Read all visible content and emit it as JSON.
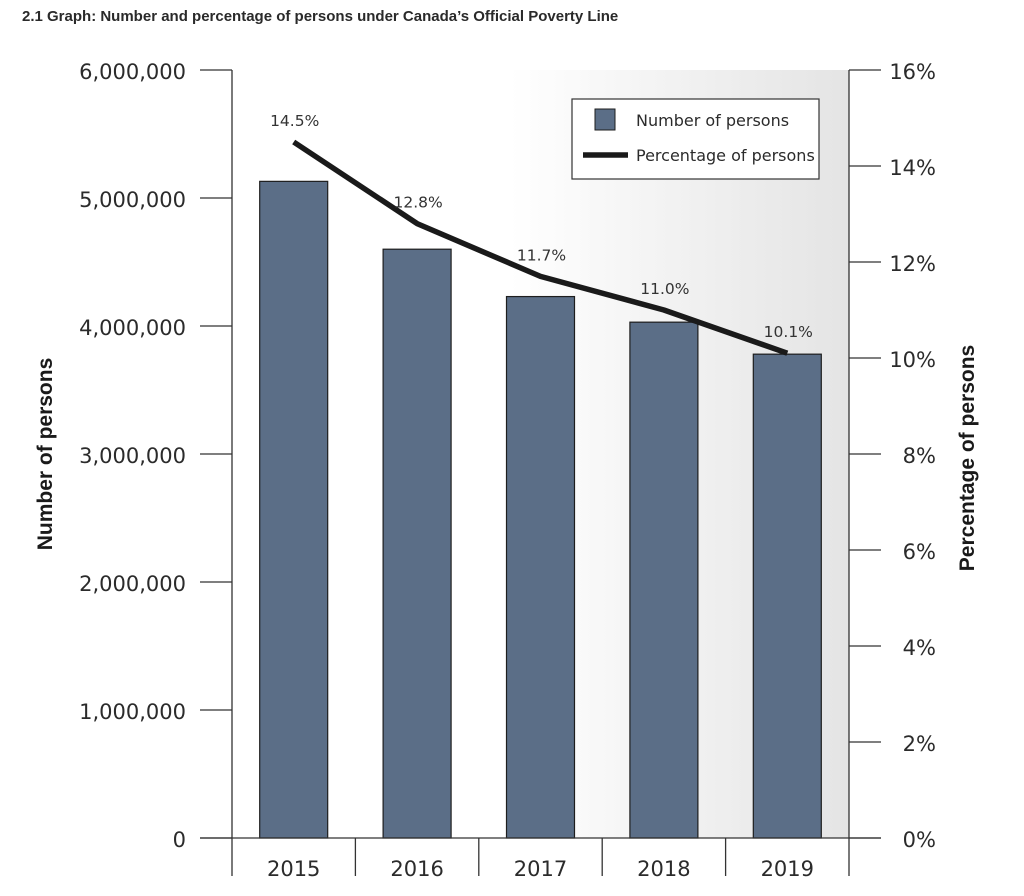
{
  "page": {
    "title": "2.1 Graph: Number and percentage of persons under Canada’s Official Poverty Line"
  },
  "chart_data": {
    "type": "bar",
    "title": "2.1 Graph: Number and percentage of persons under Canada’s Official Poverty Line",
    "categories": [
      "2015",
      "2016",
      "2017",
      "2018",
      "2019"
    ],
    "series": [
      {
        "name": "Number of persons",
        "type": "bar",
        "axis": "left",
        "values": [
          5130000,
          4600000,
          4230000,
          4030000,
          3780000
        ],
        "color": "#5b6e87"
      },
      {
        "name": "Percentage of persons",
        "type": "line",
        "axis": "right",
        "values": [
          14.5,
          12.8,
          11.7,
          11.0,
          10.1
        ],
        "value_labels": [
          "14.5%",
          "12.8%",
          "11.7%",
          "11.0%",
          "10.1%"
        ],
        "color": "#1a1a1a"
      }
    ],
    "ylabel": "Number of persons",
    "ylabel_right": "Percentage of persons",
    "ylim": [
      0,
      6000000
    ],
    "ylim_right": [
      0,
      16
    ],
    "yticks": [
      {
        "value": 0,
        "label": "0"
      },
      {
        "value": 1000000,
        "label": "1,000,000"
      },
      {
        "value": 2000000,
        "label": "2,000,000"
      },
      {
        "value": 3000000,
        "label": "3,000,000"
      },
      {
        "value": 4000000,
        "label": "4,000,000"
      },
      {
        "value": 5000000,
        "label": "5,000,000"
      },
      {
        "value": 6000000,
        "label": "6,000,000"
      }
    ],
    "yticks_right": [
      {
        "value": 0,
        "label": "0%"
      },
      {
        "value": 2,
        "label": "2%"
      },
      {
        "value": 4,
        "label": "4%"
      },
      {
        "value": 6,
        "label": "6%"
      },
      {
        "value": 8,
        "label": "8%"
      },
      {
        "value": 10,
        "label": "10%"
      },
      {
        "value": 12,
        "label": "12%"
      },
      {
        "value": 14,
        "label": "14%"
      },
      {
        "value": 16,
        "label": "16%"
      }
    ],
    "legend": {
      "position": "top-right",
      "entries": [
        "Number of persons",
        "Percentage of persons"
      ]
    },
    "grid": false,
    "background": "gradient white to light gray"
  }
}
